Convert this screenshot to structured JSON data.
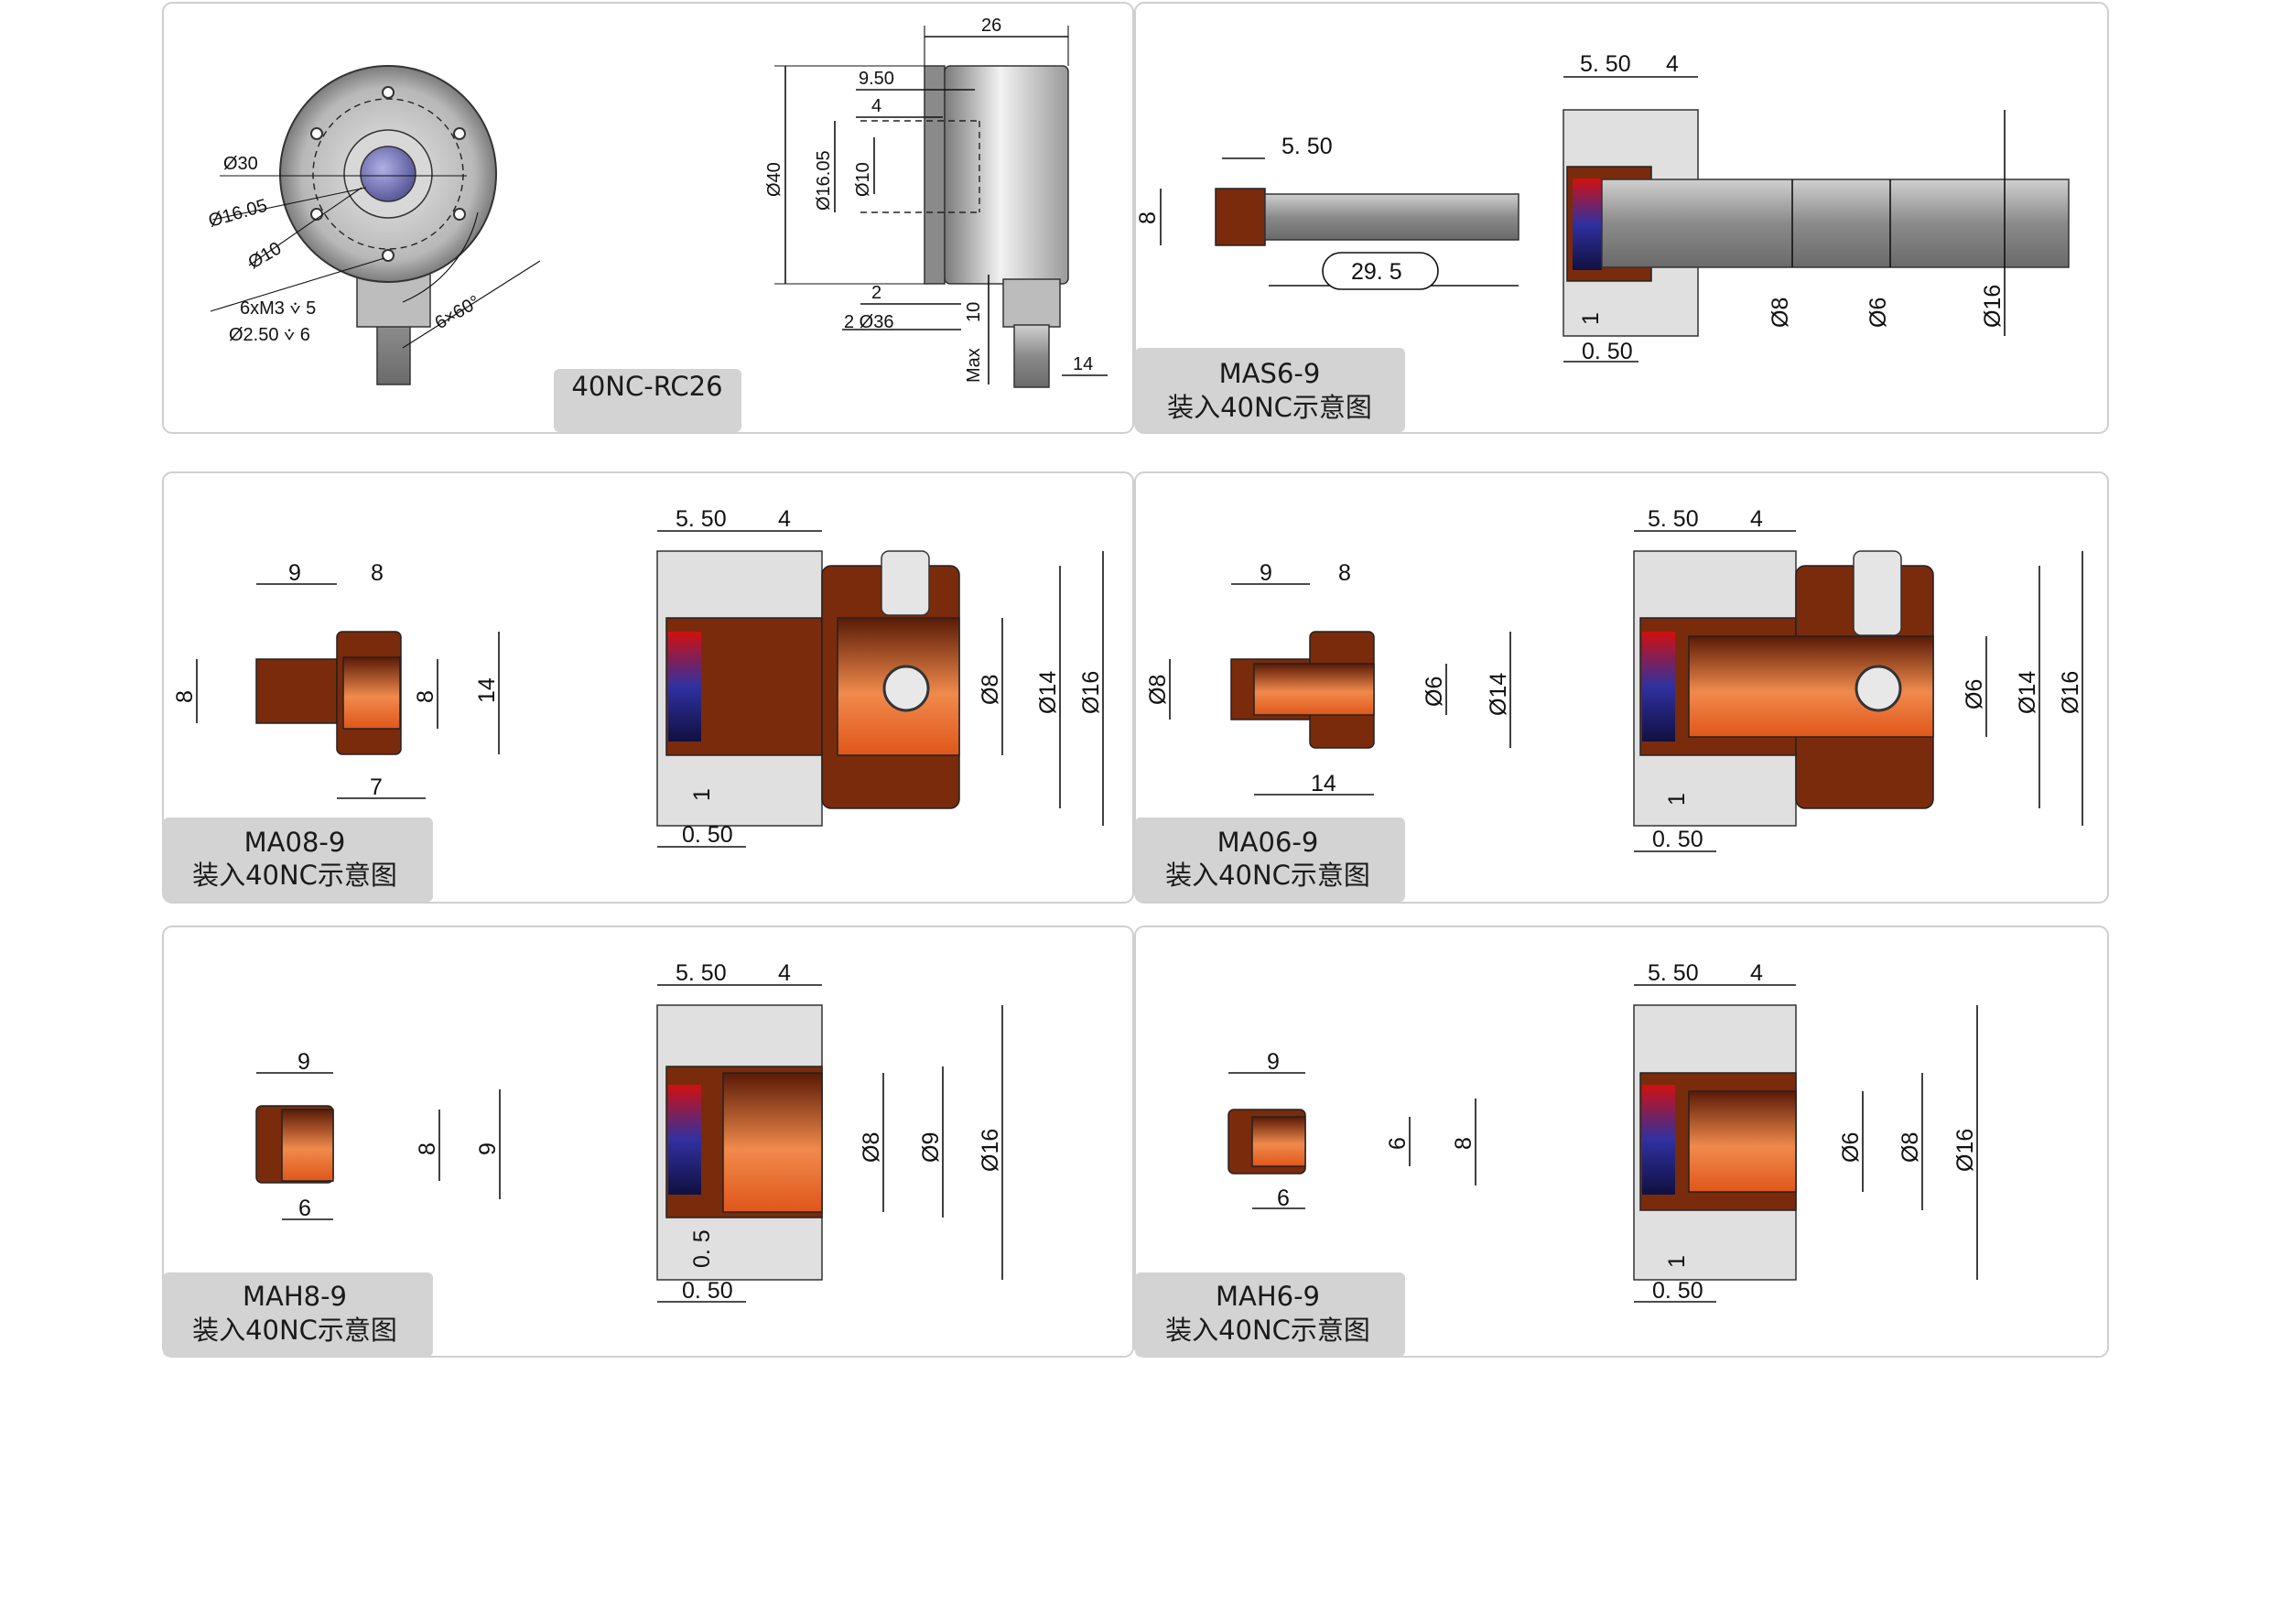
{
  "panels": {
    "rc26": {
      "title": "40NC-RC26",
      "dims": {
        "d30": "Ø30",
        "d1605": "Ø16.05",
        "d10": "Ø10",
        "m3": "6xM3 ⩒ 5",
        "d250": "Ø2.50 ⩒ 6",
        "angle": "6×60°",
        "w26": "26",
        "w950": "9.50",
        "w4": "4",
        "d40": "Ø40",
        "d1605v": "Ø16.05",
        "d10v": "Ø10",
        "w2": "2",
        "d36": "2 Ø36",
        "h10": "10",
        "max": "Max",
        "w14": "14"
      }
    },
    "mas6": {
      "title": "MAS6-9",
      "subtitle": "装入40NC示意图",
      "dims": {
        "a550": "5. 50",
        "a8": "8",
        "a295": "29. 5",
        "b550": "5. 50",
        "b4": "4",
        "b1": "1",
        "b050": "0. 50",
        "bd8": "Ø8",
        "bd6": "Ø6",
        "bd16": "Ø16"
      }
    },
    "ma08": {
      "title": "MA08-9",
      "subtitle": "装入40NC示意图",
      "dims": {
        "a9": "9",
        "a8": "8",
        "a8l": "8",
        "a8r": "8",
        "a14": "14",
        "a7": "7",
        "b550": "5. 50",
        "b4": "4",
        "bd8": "Ø8",
        "bd14": "Ø14",
        "bd16": "Ø16",
        "b1": "1",
        "b050": "0. 50"
      }
    },
    "ma06": {
      "title": "MA06-9",
      "subtitle": "装入40NC示意图",
      "dims": {
        "a9": "9",
        "a8": "8",
        "ad8": "Ø8",
        "ad6": "Ø6",
        "ad14": "Ø14",
        "a14": "14",
        "b550": "5. 50",
        "b4": "4",
        "bd6": "Ø6",
        "bd14": "Ø14",
        "bd16": "Ø16",
        "b1": "1",
        "b050": "0. 50"
      }
    },
    "mah8": {
      "title": "MAH8-9",
      "subtitle": "装入40NC示意图",
      "dims": {
        "a9": "9",
        "a6": "6",
        "a8": "8",
        "a9v": "9",
        "b550": "5. 50",
        "b4": "4",
        "bd8": "Ø8",
        "bd9": "Ø9",
        "bd16": "Ø16",
        "b05": "0. 5",
        "b050": "0. 50"
      }
    },
    "mah6": {
      "title": "MAH6-9",
      "subtitle": "装入40NC示意图",
      "dims": {
        "a9": "9",
        "a6": "6",
        "a6v": "6",
        "a8v": "8",
        "b550": "5. 50",
        "b4": "4",
        "bd6": "Ø6",
        "bd8": "Ø8",
        "bd16": "Ø16",
        "b1": "1",
        "b050": "0. 50"
      }
    }
  },
  "colors": {
    "border": "#cfcfcf",
    "tag": "#d3d3d3",
    "brown": "#7a2b0c",
    "copper": "#e0621c"
  }
}
